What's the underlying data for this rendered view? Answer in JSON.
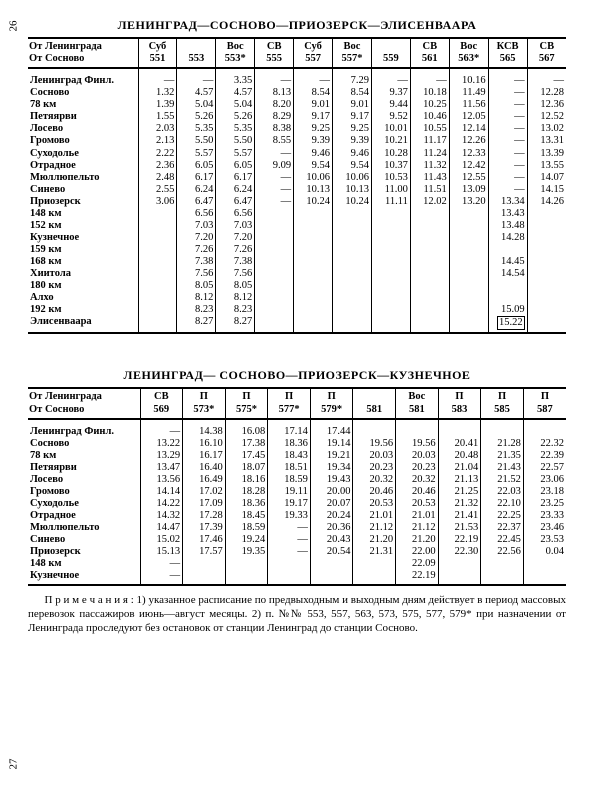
{
  "page_left": "26",
  "page_right": "27",
  "table1": {
    "title": "ЛЕНИНГРАД—СОСНОВО—ПРИОЗЕРСК—ЭЛИСЕНВААРА",
    "header_from1": "От Ленинграда",
    "header_from2": "От Сосново",
    "trains": [
      {
        "type": "Суб",
        "num": "551"
      },
      {
        "type": "",
        "num": "553"
      },
      {
        "type": "Вос",
        "num": "553*"
      },
      {
        "type": "СВ",
        "num": "555"
      },
      {
        "type": "Суб",
        "num": "557"
      },
      {
        "type": "Вос",
        "num": "557*"
      },
      {
        "type": "",
        "num": "559"
      },
      {
        "type": "СВ",
        "num": "561"
      },
      {
        "type": "Вос",
        "num": "563*"
      },
      {
        "type": "КСВ",
        "num": "565"
      },
      {
        "type": "СВ",
        "num": "567"
      }
    ],
    "rows": [
      {
        "s": "Ленинград Финл.",
        "v": [
          "—",
          "—",
          "3.35",
          "—",
          "—",
          "7.29",
          "—",
          "—",
          "10.16",
          "—",
          "—"
        ]
      },
      {
        "s": "Сосново",
        "v": [
          "1.32",
          "4.57",
          "4.57",
          "8.13",
          "8.54",
          "8.54",
          "9.37",
          "10.18",
          "11.49",
          "—",
          "12.28"
        ]
      },
      {
        "s": "78 км",
        "v": [
          "1.39",
          "5.04",
          "5.04",
          "8.20",
          "9.01",
          "9.01",
          "9.44",
          "10.25",
          "11.56",
          "—",
          "12.36"
        ]
      },
      {
        "s": "Петяярви",
        "v": [
          "1.55",
          "5.26",
          "5.26",
          "8.29",
          "9.17",
          "9.17",
          "9.52",
          "10.46",
          "12.05",
          "—",
          "12.52"
        ]
      },
      {
        "s": "Лосево",
        "v": [
          "2.03",
          "5.35",
          "5.35",
          "8.38",
          "9.25",
          "9.25",
          "10.01",
          "10.55",
          "12.14",
          "—",
          "13.02"
        ]
      },
      {
        "s": "Громово",
        "v": [
          "2.13",
          "5.50",
          "5.50",
          "8.55",
          "9.39",
          "9.39",
          "10.21",
          "11.17",
          "12.26",
          "—",
          "13.31"
        ]
      },
      {
        "s": "Суходолье",
        "v": [
          "2.22",
          "5.57",
          "5.57",
          "—",
          "9.46",
          "9.46",
          "10.28",
          "11.24",
          "12.33",
          "—",
          "13.39"
        ]
      },
      {
        "s": "Отрадное",
        "v": [
          "2.36",
          "6.05",
          "6.05",
          "9.09",
          "9.54",
          "9.54",
          "10.37",
          "11.32",
          "12.42",
          "—",
          "13.55"
        ]
      },
      {
        "s": "Мюллюпельто",
        "v": [
          "2.48",
          "6.17",
          "6.17",
          "—",
          "10.06",
          "10.06",
          "10.53",
          "11.43",
          "12.55",
          "—",
          "14.07"
        ]
      },
      {
        "s": "Синево",
        "v": [
          "2.55",
          "6.24",
          "6.24",
          "—",
          "10.13",
          "10.13",
          "11.00",
          "11.51",
          "13.09",
          "—",
          "14.15"
        ]
      },
      {
        "s": "Приозерск",
        "v": [
          "3.06",
          "6.47",
          "6.47",
          "—",
          "10.24",
          "10.24",
          "11.11",
          "12.02",
          "13.20",
          "13.34",
          "14.26"
        ]
      },
      {
        "s": "148 км",
        "v": [
          "",
          "6.56",
          "6.56",
          "",
          "",
          "",
          "",
          "",
          "",
          "13.43",
          ""
        ]
      },
      {
        "s": "152 км",
        "v": [
          "",
          "7.03",
          "7.03",
          "",
          "",
          "",
          "",
          "",
          "",
          "13.48",
          ""
        ]
      },
      {
        "s": "Кузнечное",
        "v": [
          "",
          "7.20",
          "7.20",
          "",
          "",
          "",
          "",
          "",
          "",
          "14.28",
          ""
        ]
      },
      {
        "s": "159 км",
        "v": [
          "",
          "7.26",
          "7.26",
          "",
          "",
          "",
          "",
          "",
          "",
          "",
          ""
        ]
      },
      {
        "s": "168 км",
        "v": [
          "",
          "7.38",
          "7.38",
          "",
          "",
          "",
          "",
          "",
          "",
          "14.45",
          ""
        ]
      },
      {
        "s": "Хиитола",
        "v": [
          "",
          "7.56",
          "7.56",
          "",
          "",
          "",
          "",
          "",
          "",
          "14.54",
          ""
        ]
      },
      {
        "s": "180 км",
        "v": [
          "",
          "8.05",
          "8.05",
          "",
          "",
          "",
          "",
          "",
          "",
          "",
          ""
        ]
      },
      {
        "s": "Алхо",
        "v": [
          "",
          "8.12",
          "8.12",
          "",
          "",
          "",
          "",
          "",
          "",
          "",
          ""
        ]
      },
      {
        "s": "192 км",
        "v": [
          "",
          "8.23",
          "8.23",
          "",
          "",
          "",
          "",
          "",
          "",
          "15.09",
          ""
        ]
      },
      {
        "s": "Элисенваара",
        "v": [
          "",
          "8.27",
          "8.27",
          "",
          "",
          "",
          "",
          "",
          "",
          "15.22",
          ""
        ]
      }
    ]
  },
  "table2": {
    "title": "ЛЕНИНГРАД— СОСНОВО—ПРИОЗЕРСК—КУЗНЕЧНОЕ",
    "header_from1": "От Ленинграда",
    "header_from2": "От Сосново",
    "trains": [
      {
        "type": "СВ",
        "num": "569"
      },
      {
        "type": "П",
        "num": "573*"
      },
      {
        "type": "П",
        "num": "575*"
      },
      {
        "type": "П",
        "num": "577*"
      },
      {
        "type": "П",
        "num": "579*"
      },
      {
        "type": "",
        "num": "581"
      },
      {
        "type": "Вос",
        "num": "581"
      },
      {
        "type": "П",
        "num": "583"
      },
      {
        "type": "П",
        "num": "585"
      },
      {
        "type": "П",
        "num": "587"
      }
    ],
    "rows": [
      {
        "s": "Ленинград Финл.",
        "v": [
          "—",
          "14.38",
          "16.08",
          "17.14",
          "17.44",
          "",
          "",
          "",
          "",
          ""
        ]
      },
      {
        "s": "Сосново",
        "v": [
          "13.22",
          "16.10",
          "17.38",
          "18.36",
          "19.14",
          "19.56",
          "19.56",
          "20.41",
          "21.28",
          "22.32"
        ]
      },
      {
        "s": "78 км",
        "v": [
          "13.29",
          "16.17",
          "17.45",
          "18.43",
          "19.21",
          "20.03",
          "20.03",
          "20.48",
          "21.35",
          "22.39"
        ]
      },
      {
        "s": "Петяярви",
        "v": [
          "13.47",
          "16.40",
          "18.07",
          "18.51",
          "19.34",
          "20.23",
          "20.23",
          "21.04",
          "21.43",
          "22.57"
        ]
      },
      {
        "s": "Лосево",
        "v": [
          "13.56",
          "16.49",
          "18.16",
          "18.59",
          "19.43",
          "20.32",
          "20.32",
          "21.13",
          "21.52",
          "23.06"
        ]
      },
      {
        "s": "Громово",
        "v": [
          "14.14",
          "17.02",
          "18.28",
          "19.11",
          "20.00",
          "20.46",
          "20.46",
          "21.25",
          "22.03",
          "23.18"
        ]
      },
      {
        "s": "Суходолье",
        "v": [
          "14.22",
          "17.09",
          "18.36",
          "19.17",
          "20.07",
          "20.53",
          "20.53",
          "21.32",
          "22.10",
          "23.25"
        ]
      },
      {
        "s": "Отрадное",
        "v": [
          "14.32",
          "17.28",
          "18.45",
          "19.33",
          "20.24",
          "21.01",
          "21.01",
          "21.41",
          "22.25",
          "23.33"
        ]
      },
      {
        "s": "Мюллюпельто",
        "v": [
          "14.47",
          "17.39",
          "18.59",
          "—",
          "20.36",
          "21.12",
          "21.12",
          "21.53",
          "22.37",
          "23.46"
        ]
      },
      {
        "s": "Синево",
        "v": [
          "15.02",
          "17.46",
          "19.24",
          "—",
          "20.43",
          "21.20",
          "21.20",
          "22.19",
          "22.45",
          "23.53"
        ]
      },
      {
        "s": "Приозерск",
        "v": [
          "15.13",
          "17.57",
          "19.35",
          "—",
          "20.54",
          "21.31",
          "22.00",
          "22.30",
          "22.56",
          "0.04"
        ]
      },
      {
        "s": "148 км",
        "v": [
          "—",
          "",
          "",
          "",
          "",
          "",
          "22.09",
          "",
          "",
          ""
        ]
      },
      {
        "s": "Кузнечное",
        "v": [
          "—",
          "",
          "",
          "",
          "",
          "",
          "22.19",
          "",
          "",
          ""
        ]
      }
    ]
  },
  "notes": "П р и м е ч а н и я :  1) указанное  расписание  по  предвыходным  и  выходным дням действует в период массовых перевозок пассажиров  июнь—август  месяцы. 2) п. №№ 553, 557, 563, 573, 575, 577, 579* при назначении от Ленинграда проследуют без остановок от станции Ленинград до станции Сосново."
}
